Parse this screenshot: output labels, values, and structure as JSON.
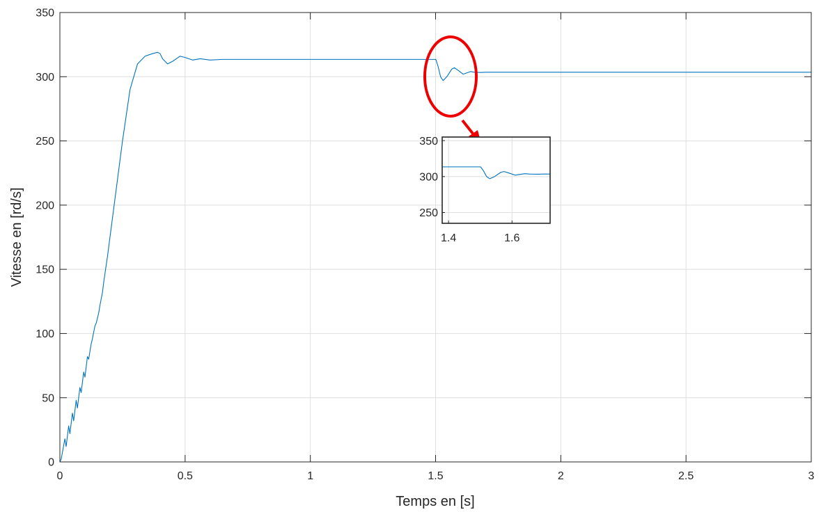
{
  "chart_data": [
    {
      "type": "line",
      "xlabel": "Temps en [s]",
      "ylabel": "Vitesse en [rd/s]",
      "xlim": [
        0,
        3
      ],
      "ylim": [
        0,
        350
      ],
      "grid": true,
      "xticks": [
        0,
        0.5,
        1,
        1.5,
        2,
        2.5,
        3
      ],
      "xtick_labels": [
        "0",
        "0.5",
        "1",
        "1.5",
        "2",
        "2.5",
        "3"
      ],
      "yticks": [
        0,
        50,
        100,
        150,
        200,
        250,
        300,
        350
      ],
      "ytick_labels": [
        "0",
        "50",
        "100",
        "150",
        "200",
        "250",
        "300",
        "350"
      ],
      "series": [
        {
          "color": "#0072BD",
          "x": [
            0,
            0.005,
            0.02,
            0.025,
            0.035,
            0.04,
            0.05,
            0.055,
            0.065,
            0.07,
            0.08,
            0.085,
            0.095,
            0.1,
            0.11,
            0.115,
            0.125,
            0.13,
            0.14,
            0.145,
            0.155,
            0.16,
            0.17,
            0.175,
            0.19,
            0.2,
            0.22,
            0.25,
            0.28,
            0.31,
            0.34,
            0.37,
            0.39,
            0.4,
            0.41,
            0.43,
            0.45,
            0.48,
            0.5,
            0.53,
            0.56,
            0.6,
            0.65,
            0.7,
            0.8,
            1.0,
            1.25,
            1.5,
            1.502,
            1.51,
            1.52,
            1.53,
            1.545,
            1.565,
            1.575,
            1.59,
            1.61,
            1.625,
            1.64,
            1.655,
            1.68,
            1.7,
            1.75,
            1.8,
            2.0,
            2.5,
            3.0
          ],
          "y": [
            0,
            2,
            18,
            12,
            28,
            22,
            38,
            32,
            48,
            42,
            58,
            54,
            70,
            66,
            82,
            80,
            92,
            96,
            106,
            108,
            116,
            122,
            132,
            140,
            160,
            175,
            205,
            250,
            290,
            310,
            316,
            318,
            319,
            318,
            314,
            310,
            312,
            316,
            315,
            313,
            314,
            313,
            313.5,
            313.5,
            313.5,
            313.5,
            313.5,
            313.5,
            313,
            308,
            300,
            297,
            300,
            306,
            307,
            305,
            302,
            303,
            304,
            303.5,
            303.3,
            303.5,
            303.5,
            303.5,
            303.5,
            303.5,
            303.5
          ]
        }
      ]
    },
    {
      "type": "line",
      "xlim": [
        1.38,
        1.72
      ],
      "ylim": [
        235,
        355
      ],
      "xticks": [
        1.4,
        1.6
      ],
      "xtick_labels": [
        "1.4",
        "1.6"
      ],
      "yticks": [
        250,
        300,
        350
      ],
      "ytick_labels": [
        "250",
        "300",
        "350"
      ],
      "series": [
        {
          "color": "#0072BD",
          "x": [
            1.38,
            1.4,
            1.45,
            1.5,
            1.502,
            1.51,
            1.52,
            1.53,
            1.545,
            1.565,
            1.575,
            1.59,
            1.61,
            1.625,
            1.64,
            1.655,
            1.68,
            1.7,
            1.72
          ],
          "y": [
            313.5,
            313.5,
            313.5,
            313.5,
            313,
            308,
            300,
            297,
            300,
            306,
            307,
            305,
            302,
            303,
            304,
            303.5,
            303.3,
            303.5,
            303.5
          ]
        }
      ]
    }
  ],
  "annotation": {
    "highlight_color": "#ee0000"
  }
}
